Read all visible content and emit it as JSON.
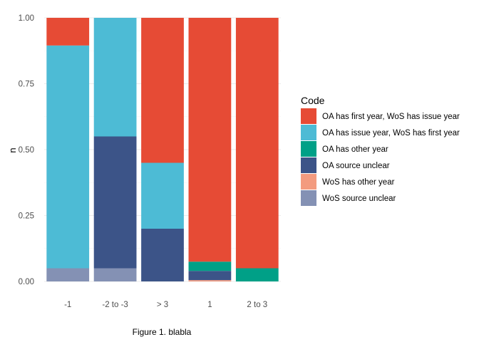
{
  "chart_data": {
    "type": "bar",
    "stacked": true,
    "caption": "Figure 1. blabla",
    "xlabel": "",
    "ylabel": "n",
    "ylim": [
      0,
      1
    ],
    "yticks": [
      0,
      0.25,
      0.5,
      0.75,
      1
    ],
    "ytick_labels": [
      "0.00",
      "0.25",
      "0.50",
      "0.75",
      "1.00"
    ],
    "grid": true,
    "legend_title": "Code",
    "legend_position": "right",
    "categories": [
      "-1",
      "-2 to -3",
      "> 3",
      "1",
      "2 to 3"
    ],
    "series": [
      {
        "name": "WoS source unclear",
        "color": "#8491B4",
        "values": [
          0.05,
          0.05,
          0,
          0,
          0
        ]
      },
      {
        "name": "WoS has other year",
        "color": "#F39B7F",
        "values": [
          0,
          0,
          0,
          0.005,
          0
        ]
      },
      {
        "name": "OA source unclear",
        "color": "#3C5488",
        "values": [
          0,
          0.5,
          0.2,
          0.035,
          0
        ]
      },
      {
        "name": "OA has other year",
        "color": "#00A087",
        "values": [
          0,
          0,
          0,
          0.035,
          0.05
        ]
      },
      {
        "name": "OA has issue year, WoS has first year",
        "color": "#4DBBD5",
        "values": [
          0.845,
          0.45,
          0.25,
          0,
          0
        ]
      },
      {
        "name": "OA has first year, WoS has issue year",
        "color": "#E64B35",
        "values": [
          0.105,
          0,
          0.55,
          0.925,
          0.95
        ]
      }
    ],
    "legend_order": [
      "OA has first year, WoS has issue year",
      "OA has issue year, WoS has first year",
      "OA has other year",
      "OA source unclear",
      "WoS has other year",
      "WoS source unclear"
    ]
  }
}
